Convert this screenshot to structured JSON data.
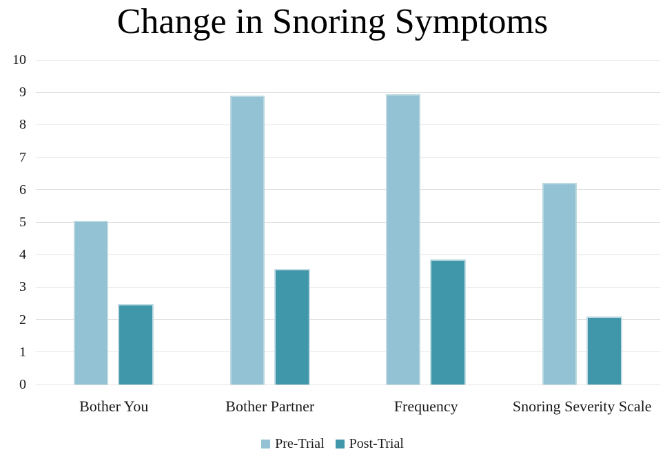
{
  "chart_data": {
    "type": "bar",
    "title": "Change in Snoring Symptoms",
    "categories": [
      "Bother You",
      "Bother Partner",
      "Frequency",
      "Snoring Severity Scale"
    ],
    "series": [
      {
        "name": "Pre-Trial",
        "values": [
          5.05,
          8.9,
          8.95,
          6.2
        ],
        "color": "#92c2d3",
        "border_color": "#bcd8e1"
      },
      {
        "name": "Post-Trial",
        "values": [
          2.48,
          3.55,
          3.85,
          2.1
        ],
        "color": "#4197aa",
        "border_color": "#c4dde5"
      }
    ],
    "xlabel": "",
    "ylabel": "",
    "ylim": [
      0,
      10
    ],
    "y_ticks": [
      0,
      1,
      2,
      3,
      4,
      5,
      6,
      7,
      8,
      9,
      10
    ],
    "grid": "horizontal",
    "grid_color": "#e2e2e2",
    "legend_position": "bottom"
  }
}
